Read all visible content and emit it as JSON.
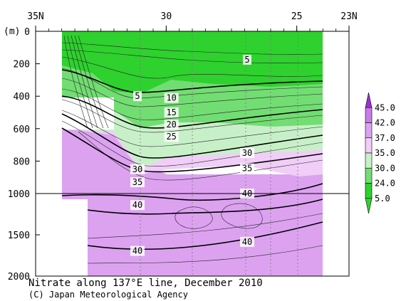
{
  "chart_data": {
    "type": "contour",
    "title": "Nitrate along 137°E line, December 2010",
    "credit": "(C) Japan Meteorological Agency",
    "x_axis": {
      "ticks": [
        {
          "lat": 35,
          "label": "35N"
        },
        {
          "lat": 30,
          "label": "30"
        },
        {
          "lat": 25,
          "label": "25"
        },
        {
          "lat": 23,
          "label": "23N"
        }
      ],
      "range": [
        35,
        23
      ]
    },
    "y_axis": {
      "unit_label": "(m)",
      "ticks": [
        {
          "depth": 0,
          "label": "0"
        },
        {
          "depth": 200,
          "label": "200"
        },
        {
          "depth": 400,
          "label": "400"
        },
        {
          "depth": 600,
          "label": "600"
        },
        {
          "depth": 800,
          "label": "800"
        },
        {
          "depth": 1000,
          "label": "1000"
        },
        {
          "depth": 1500,
          "label": "1500"
        },
        {
          "depth": 2000,
          "label": "2000"
        }
      ],
      "break_at": 1000
    },
    "colorbar": {
      "levels": [
        "45.0",
        "42.0",
        "37.0",
        "35.0",
        "30.0",
        "24.0",
        "5.0"
      ],
      "colors": [
        "#9b30d0",
        "#c77ce8",
        "#dca2f0",
        "#f0cef7",
        "#c8f0c8",
        "#72dd72",
        "#2ed12e"
      ]
    },
    "contour_labels": [
      {
        "text": "5",
        "lat": 26.9,
        "depth": 175
      },
      {
        "text": "5",
        "lat": 31.1,
        "depth": 400
      },
      {
        "text": "10",
        "lat": 29.8,
        "depth": 410
      },
      {
        "text": "15",
        "lat": 29.8,
        "depth": 500
      },
      {
        "text": "20",
        "lat": 29.8,
        "depth": 575
      },
      {
        "text": "25",
        "lat": 29.8,
        "depth": 650
      },
      {
        "text": "30",
        "lat": 26.9,
        "depth": 750
      },
      {
        "text": "35",
        "lat": 26.9,
        "depth": 845
      },
      {
        "text": "30",
        "lat": 31.1,
        "depth": 850
      },
      {
        "text": "35",
        "lat": 31.1,
        "depth": 930
      },
      {
        "text": "40",
        "lat": 26.9,
        "depth": 1000
      },
      {
        "text": "40",
        "lat": 31.1,
        "depth": 1140
      },
      {
        "text": "40",
        "lat": 26.9,
        "depth": 1585
      },
      {
        "text": "40",
        "lat": 31.1,
        "depth": 1695
      }
    ]
  }
}
